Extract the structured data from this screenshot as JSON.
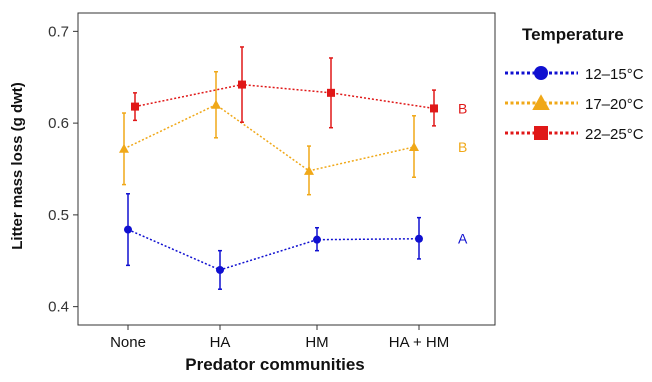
{
  "chart_data": {
    "type": "line",
    "categories": [
      "None",
      "HA",
      "HM",
      "HA + HM"
    ],
    "xlabel": "Predator communities",
    "ylabel": "Litter mass loss (g dwt)",
    "ylim": [
      0.38,
      0.72
    ],
    "yticks": [
      0.4,
      0.5,
      0.6,
      0.7
    ],
    "ytick_labels": [
      "0.4",
      "0.5",
      "0.6",
      "0.7"
    ],
    "grid": false,
    "legend": {
      "title": "Temperature",
      "placement": "right"
    },
    "series": [
      {
        "name": "12–15°C",
        "color": "#1010d0",
        "marker": "circle",
        "values": [
          0.484,
          0.44,
          0.473,
          0.474
        ],
        "error_low": [
          0.445,
          0.419,
          0.461,
          0.452
        ],
        "error_high": [
          0.523,
          0.461,
          0.486,
          0.497
        ],
        "group_label": "A"
      },
      {
        "name": "17–20°C",
        "color": "#f0a818",
        "marker": "triangle",
        "values": [
          0.572,
          0.62,
          0.548,
          0.574
        ],
        "error_low": [
          0.533,
          0.584,
          0.522,
          0.541
        ],
        "error_high": [
          0.611,
          0.656,
          0.575,
          0.608
        ],
        "group_label": "B"
      },
      {
        "name": "22–25°C",
        "color": "#e01818",
        "marker": "square",
        "values": [
          0.618,
          0.642,
          0.633,
          0.616
        ],
        "error_low": [
          0.603,
          0.601,
          0.595,
          0.597
        ],
        "error_high": [
          0.633,
          0.683,
          0.671,
          0.636
        ],
        "group_label": "B"
      }
    ]
  }
}
